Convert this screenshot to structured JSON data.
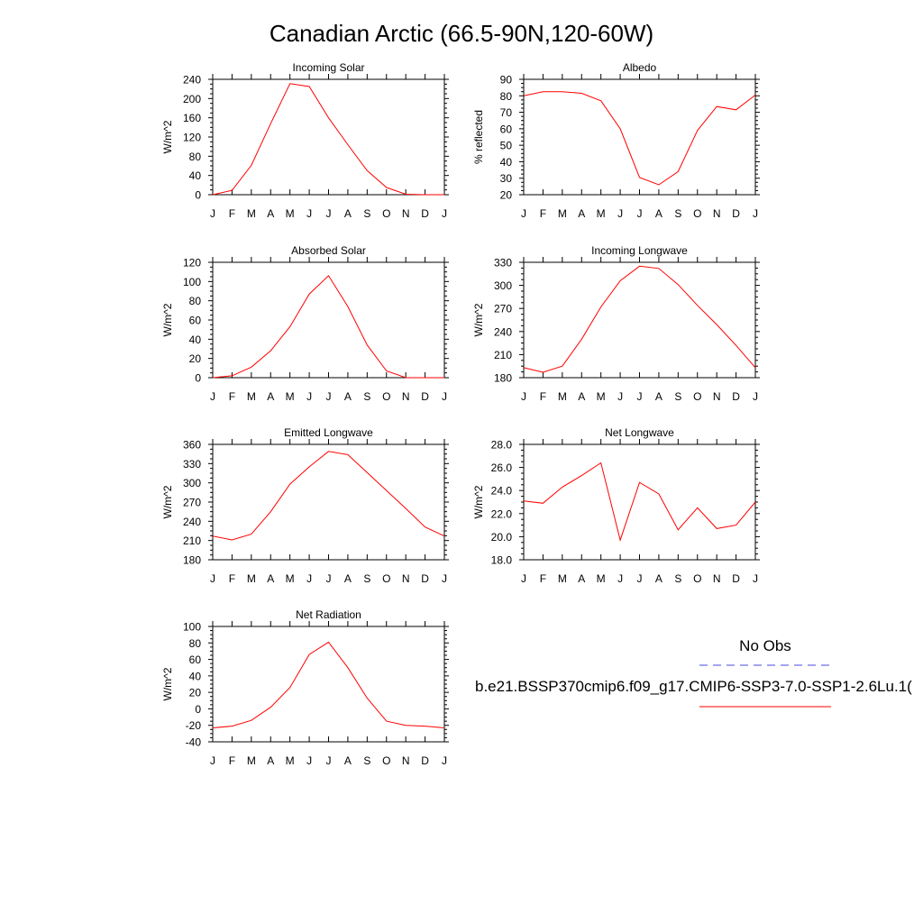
{
  "figure": {
    "title": "Canadian Arctic (66.5-90N,120-60W)"
  },
  "legend": {
    "obs_label": "No Obs",
    "model_label": "b.e21.BSSP370cmip6.f09_g17.CMIP6-SSP3-7.0-SSP1-2.6Lu.1(",
    "obs_color": "#4a4ae0",
    "model_color": "#ff0000"
  },
  "colors": {
    "line": "#ff0000",
    "axis": "#000000"
  },
  "chart_data": [
    {
      "type": "line",
      "title": "Incoming Solar",
      "ylabel": "W/m^2",
      "x": [
        "J",
        "F",
        "M",
        "A",
        "M",
        "J",
        "J",
        "A",
        "S",
        "O",
        "N",
        "D",
        "J"
      ],
      "ylim": [
        0,
        240
      ],
      "yticks": [
        "0",
        "40",
        "80",
        "120",
        "160",
        "200",
        "240"
      ],
      "series": [
        {
          "values": [
            0,
            9,
            61,
            148,
            231,
            225,
            160,
            104,
            50,
            15,
            1,
            0,
            0
          ]
        }
      ]
    },
    {
      "type": "line",
      "title": "Albedo",
      "ylabel": "% reflected",
      "x": [
        "J",
        "F",
        "M",
        "A",
        "M",
        "J",
        "J",
        "A",
        "S",
        "O",
        "N",
        "D",
        "J"
      ],
      "ylim": [
        20,
        90
      ],
      "yticks": [
        "20",
        "30",
        "40",
        "50",
        "60",
        "70",
        "80",
        "90"
      ],
      "series": [
        {
          "values": [
            80,
            82.5,
            82.5,
            81.5,
            77,
            60,
            30.5,
            26,
            34,
            59,
            73.5,
            71.5,
            80.5
          ]
        }
      ]
    },
    {
      "type": "line",
      "title": "Absorbed Solar",
      "ylabel": "W/m^2",
      "x": [
        "J",
        "F",
        "M",
        "A",
        "M",
        "J",
        "J",
        "A",
        "S",
        "O",
        "N",
        "D",
        "J"
      ],
      "ylim": [
        0,
        120
      ],
      "yticks": [
        "0",
        "20",
        "40",
        "60",
        "80",
        "100",
        "120"
      ],
      "series": [
        {
          "values": [
            0,
            2,
            11,
            28,
            53,
            87,
            106,
            74,
            34,
            7,
            0,
            0,
            0
          ]
        }
      ]
    },
    {
      "type": "line",
      "title": "Incoming Longwave",
      "ylabel": "W/m^2",
      "x": [
        "J",
        "F",
        "M",
        "A",
        "M",
        "J",
        "J",
        "A",
        "S",
        "O",
        "N",
        "D",
        "J"
      ],
      "ylim": [
        180,
        330
      ],
      "yticks": [
        "180",
        "210",
        "240",
        "270",
        "300",
        "330"
      ],
      "series": [
        {
          "values": [
            193,
            187,
            195,
            230,
            272,
            306,
            325,
            322,
            301,
            274,
            249,
            222,
            193
          ]
        }
      ]
    },
    {
      "type": "line",
      "title": "Emitted Longwave",
      "ylabel": "W/m^2",
      "x": [
        "J",
        "F",
        "M",
        "A",
        "M",
        "J",
        "J",
        "A",
        "S",
        "O",
        "N",
        "D",
        "J"
      ],
      "ylim": [
        180,
        360
      ],
      "yticks": [
        "180",
        "210",
        "240",
        "270",
        "300",
        "330",
        "360"
      ],
      "series": [
        {
          "values": [
            217,
            211,
            220,
            255,
            298,
            325,
            349,
            344,
            316,
            288,
            260,
            231,
            217
          ]
        }
      ]
    },
    {
      "type": "line",
      "title": "Net Longwave",
      "ylabel": "W/m^2",
      "x": [
        "J",
        "F",
        "M",
        "A",
        "M",
        "J",
        "J",
        "A",
        "S",
        "O",
        "N",
        "D",
        "J"
      ],
      "ylim": [
        18,
        28
      ],
      "yticks": [
        "18.0",
        "20.0",
        "22.0",
        "24.0",
        "26.0",
        "28.0"
      ],
      "series": [
        {
          "values": [
            23.1,
            22.9,
            24.3,
            25.3,
            26.4,
            19.7,
            24.7,
            23.7,
            20.6,
            22.5,
            20.7,
            21.0,
            23.0
          ]
        }
      ]
    },
    {
      "type": "line",
      "title": "Net Radiation",
      "ylabel": "W/m^2",
      "x": [
        "J",
        "F",
        "M",
        "A",
        "M",
        "J",
        "J",
        "A",
        "S",
        "O",
        "N",
        "D",
        "J"
      ],
      "ylim": [
        -40,
        100
      ],
      "yticks": [
        "-40",
        "-20",
        "0",
        "20",
        "40",
        "60",
        "80",
        "100"
      ],
      "series": [
        {
          "values": [
            -23,
            -21,
            -14,
            2,
            26,
            66,
            81,
            50,
            13,
            -15,
            -20,
            -21,
            -23
          ]
        }
      ]
    }
  ]
}
